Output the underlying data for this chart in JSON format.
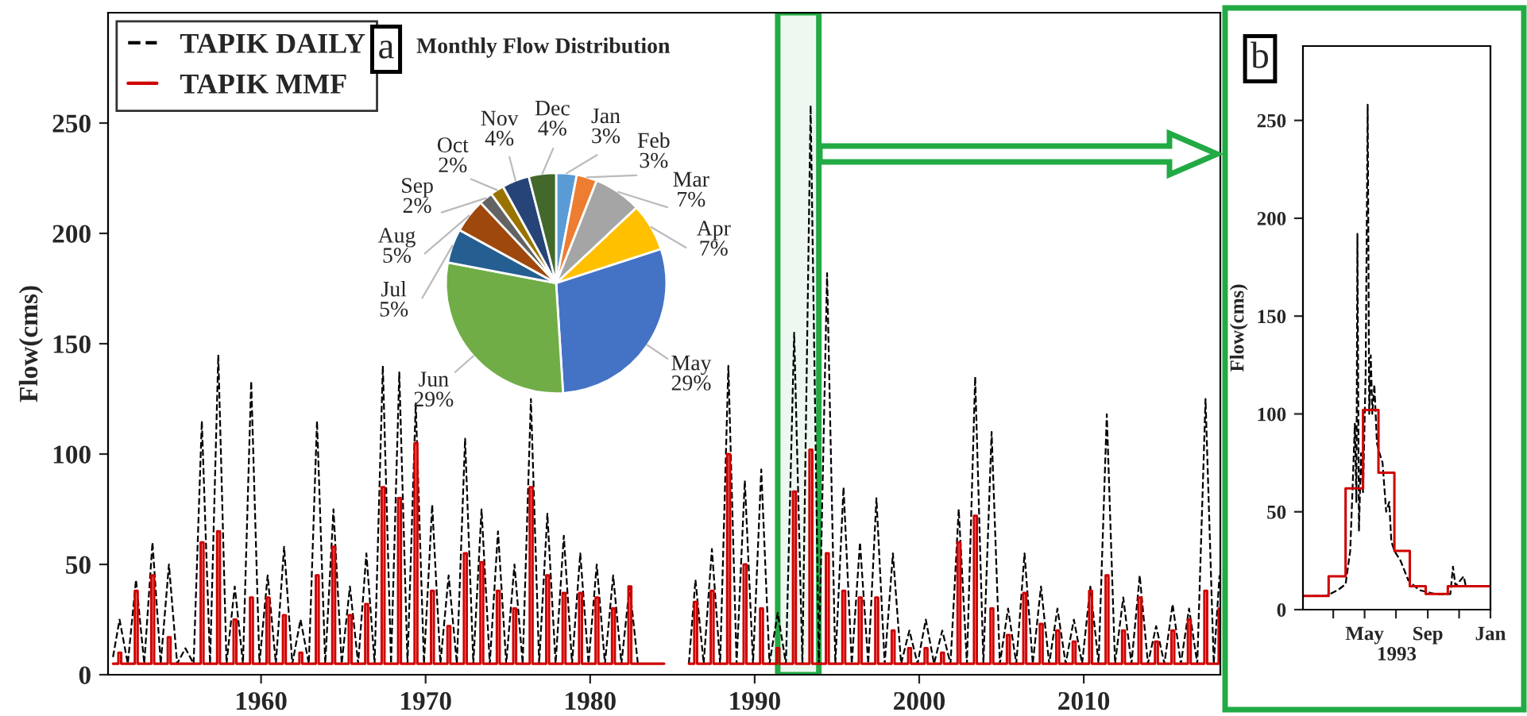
{
  "chart_data": [
    {
      "type": "line",
      "ylabel": "Flow(cms)",
      "xlim": [
        1950.7,
        2018.3
      ],
      "xticks": [
        1960,
        1970,
        1980,
        1990,
        2000,
        2010
      ],
      "ylim": [
        0,
        300
      ],
      "yticks": [
        0,
        50,
        100,
        150,
        200,
        250
      ],
      "grid": false,
      "legend": "top left",
      "bands": [
        {
          "axis": "x",
          "from": 1991.4,
          "to": 1993.9,
          "color": "#22aa44"
        }
      ],
      "series": [
        {
          "name": "TAPIK DAILY",
          "type": "line",
          "color": "#000000",
          "line_style": "dashed",
          "x": [
            1951.0,
            1951.4,
            1951.9,
            1952.4,
            1952.9,
            1953.4,
            1953.9,
            1954.4,
            1954.9,
            1955.4,
            1955.9,
            1956.4,
            1956.9,
            1957.4,
            1957.9,
            1958.4,
            1958.9,
            1959.4,
            1959.9,
            1960.4,
            1960.9,
            1961.4,
            1961.9,
            1962.4,
            1962.9,
            1963.4,
            1963.9,
            1964.4,
            1964.9,
            1965.4,
            1965.9,
            1966.4,
            1966.9,
            1967.4,
            1967.9,
            1968.4,
            1968.9,
            1969.4,
            1969.9,
            1970.4,
            1970.9,
            1971.4,
            1971.9,
            1972.4,
            1972.9,
            1973.4,
            1973.9,
            1974.4,
            1974.9,
            1975.4,
            1975.9,
            1976.4,
            1976.9,
            1977.4,
            1977.9,
            1978.4,
            1978.9,
            1979.4,
            1979.9,
            1980.4,
            1980.9,
            1981.4,
            1981.9,
            1982.4,
            1982.9,
            1984.5,
            1986.0,
            1986.4,
            1986.9,
            1987.4,
            1987.9,
            1988.4,
            1988.9,
            1989.4,
            1989.9,
            1990.4,
            1990.9,
            1991.4,
            1991.9,
            1992.4,
            1992.9,
            1993.4,
            1993.9,
            1994.4,
            1994.9,
            1995.4,
            1995.9,
            1996.4,
            1996.9,
            1997.4,
            1997.9,
            1998.4,
            1998.9,
            1999.4,
            1999.9,
            2000.4,
            2000.9,
            2001.4,
            2001.9,
            2002.4,
            2002.9,
            2003.4,
            2003.9,
            2004.4,
            2004.9,
            2005.4,
            2005.9,
            2006.4,
            2006.9,
            2007.4,
            2007.9,
            2008.4,
            2008.9,
            2009.4,
            2009.9,
            2010.4,
            2010.9,
            2011.4,
            2011.9,
            2012.4,
            2012.9,
            2013.4,
            2013.9,
            2014.4,
            2014.9,
            2015.4,
            2015.9,
            2016.4,
            2016.9,
            2017.4,
            2017.9,
            2018.25
          ],
          "values": [
            8,
            25,
            5,
            43,
            5,
            60,
            5,
            50,
            5,
            12,
            5,
            115,
            5,
            145,
            5,
            40,
            5,
            133,
            5,
            45,
            5,
            58,
            5,
            25,
            5,
            115,
            5,
            75,
            5,
            40,
            5,
            55,
            5,
            140,
            5,
            137,
            5,
            123,
            5,
            77,
            5,
            45,
            5,
            107,
            5,
            75,
            5,
            65,
            5,
            50,
            5,
            125,
            5,
            73,
            5,
            63,
            5,
            55,
            5,
            50,
            5,
            45,
            5,
            40,
            5,
            null,
            5,
            43,
            5,
            57,
            5,
            140,
            5,
            88,
            5,
            93,
            5,
            28,
            5,
            155,
            5,
            258,
            5,
            182,
            5,
            85,
            5,
            60,
            5,
            80,
            5,
            55,
            5,
            20,
            5,
            25,
            5,
            20,
            5,
            75,
            5,
            135,
            5,
            110,
            5,
            30,
            5,
            55,
            5,
            40,
            5,
            30,
            5,
            25,
            5,
            40,
            5,
            118,
            5,
            35,
            5,
            45,
            5,
            22,
            5,
            32,
            5,
            30,
            5,
            125,
            5,
            45
          ]
        },
        {
          "name": "TAPIK MMF",
          "type": "step",
          "color": "#d00000",
          "line_style": "solid",
          "x": [
            1951.0,
            1951.33,
            1951.5,
            1952.33,
            1952.5,
            1953.33,
            1953.5,
            1954.33,
            1954.5,
            1955.33,
            1955.5,
            1956.33,
            1956.5,
            1957.33,
            1957.5,
            1958.33,
            1958.5,
            1959.33,
            1959.5,
            1960.33,
            1960.5,
            1961.33,
            1961.5,
            1962.33,
            1962.5,
            1963.33,
            1963.5,
            1964.33,
            1964.5,
            1965.33,
            1965.5,
            1966.33,
            1966.5,
            1967.33,
            1967.5,
            1968.33,
            1968.5,
            1969.33,
            1969.5,
            1970.33,
            1970.5,
            1971.33,
            1971.5,
            1972.33,
            1972.5,
            1973.33,
            1973.5,
            1974.33,
            1974.5,
            1975.33,
            1975.5,
            1976.33,
            1976.5,
            1977.33,
            1977.5,
            1978.33,
            1978.5,
            1979.33,
            1979.5,
            1980.33,
            1980.5,
            1981.33,
            1981.5,
            1982.33,
            1982.5,
            1984.5,
            1986.0,
            1986.33,
            1986.5,
            1987.33,
            1987.5,
            1988.33,
            1988.5,
            1989.33,
            1989.5,
            1990.33,
            1990.5,
            1991.33,
            1991.5,
            1992.33,
            1992.5,
            1993.33,
            1993.5,
            1994.33,
            1994.5,
            1995.33,
            1995.5,
            1996.33,
            1996.5,
            1997.33,
            1997.5,
            1998.33,
            1998.5,
            1999.33,
            1999.5,
            2000.33,
            2000.5,
            2001.33,
            2001.5,
            2002.33,
            2002.5,
            2003.33,
            2003.5,
            2004.33,
            2004.5,
            2005.33,
            2005.5,
            2006.33,
            2006.5,
            2007.33,
            2007.5,
            2008.33,
            2008.5,
            2009.33,
            2009.5,
            2010.33,
            2010.5,
            2011.33,
            2011.5,
            2012.33,
            2012.5,
            2013.33,
            2013.5,
            2014.33,
            2014.5,
            2015.33,
            2015.5,
            2016.33,
            2016.5,
            2017.33,
            2017.5,
            2018.2
          ],
          "values": [
            5,
            10,
            5,
            38,
            5,
            45,
            5,
            17,
            5,
            5,
            5,
            60,
            5,
            65,
            5,
            25,
            5,
            35,
            5,
            35,
            5,
            27,
            5,
            10,
            5,
            45,
            5,
            58,
            5,
            27,
            5,
            32,
            5,
            85,
            5,
            80,
            5,
            105,
            5,
            38,
            5,
            22,
            5,
            55,
            5,
            51,
            5,
            38,
            5,
            30,
            5,
            85,
            5,
            45,
            5,
            37,
            5,
            37,
            5,
            35,
            5,
            30,
            5,
            40,
            5,
            null,
            5,
            33,
            5,
            38,
            5,
            100,
            5,
            50,
            5,
            30,
            5,
            12,
            5,
            83,
            5,
            102,
            5,
            55,
            5,
            38,
            5,
            35,
            5,
            35,
            5,
            20,
            5,
            12,
            5,
            12,
            5,
            10,
            5,
            60,
            5,
            72,
            5,
            30,
            5,
            18,
            5,
            37,
            5,
            23,
            5,
            20,
            5,
            15,
            5,
            38,
            5,
            45,
            5,
            20,
            5,
            35,
            5,
            15,
            5,
            20,
            5,
            25,
            5,
            38,
            5,
            30
          ]
        }
      ]
    },
    {
      "type": "pie",
      "title": "Monthly Flow Distribution",
      "annotations": [
        "a"
      ],
      "categories": [
        "Jan",
        "Feb",
        "Mar",
        "Apr",
        "May",
        "Jun",
        "Jul",
        "Aug",
        "Sep",
        "Oct",
        "Nov",
        "Dec"
      ],
      "values": [
        3,
        3,
        7,
        7,
        29,
        29,
        5,
        5,
        2,
        2,
        4,
        4
      ],
      "value_labels": [
        "3%",
        "3%",
        "7%",
        "7%",
        "29%",
        "29%",
        "5%",
        "5%",
        "2%",
        "2%",
        "4%",
        "4%"
      ],
      "colors": [
        "#5b9bd5",
        "#ed7d31",
        "#a5a5a5",
        "#ffc000",
        "#4472c4",
        "#70ad47",
        "#255e91",
        "#9e480e",
        "#636363",
        "#997300",
        "#264478",
        "#43682b"
      ]
    },
    {
      "type": "line",
      "ylabel": "Flow(cms)",
      "xlabel": "1993",
      "annotations": [
        "b"
      ],
      "xlim": [
        "1993-01-01",
        "1994-01-01"
      ],
      "xticks": [
        {
          "value": "1993-03-01",
          "label": null
        },
        {
          "value": "1993-05-01",
          "label": "May"
        },
        {
          "value": "1993-07-01",
          "label": null
        },
        {
          "value": "1993-09-01",
          "label": "Sep"
        },
        {
          "value": "1993-11-01",
          "label": null
        },
        {
          "value": "1994-01-01",
          "label": "Jan"
        }
      ],
      "ylim": [
        0,
        288
      ],
      "yticks": [
        0,
        50,
        100,
        150,
        200,
        250
      ],
      "grid": false,
      "series": [
        {
          "type": "line",
          "color": "#000000",
          "line_style": "dashed",
          "x": [
            "1993-01-01",
            "1993-02-15",
            "1993-03-10",
            "1993-03-25",
            "1993-04-03",
            "1993-04-08",
            "1993-04-12",
            "1993-04-15",
            "1993-04-17",
            "1993-04-20",
            "1993-04-24",
            "1993-04-28",
            "1993-05-03",
            "1993-05-07",
            "1993-05-10",
            "1993-05-13",
            "1993-05-16",
            "1993-05-20",
            "1993-05-25",
            "1993-05-30",
            "1993-06-05",
            "1993-06-12",
            "1993-06-18",
            "1993-06-22",
            "1993-06-28",
            "1993-07-10",
            "1993-07-25",
            "1993-08-15",
            "1993-09-15",
            "1993-10-15",
            "1993-10-20",
            "1993-10-25",
            "1993-11-10",
            "1993-11-14",
            "1993-12-31"
          ],
          "values": [
            7,
            7,
            10,
            13,
            30,
            65,
            95,
            55,
            192,
            40,
            80,
            60,
            120,
            258,
            100,
            130,
            100,
            115,
            85,
            80,
            75,
            50,
            55,
            35,
            30,
            25,
            15,
            10,
            8,
            8,
            22,
            12,
            17,
            12,
            12
          ]
        },
        {
          "type": "step",
          "color": "#d00000",
          "line_style": "solid",
          "x": [
            "1993-01-01",
            "1993-02-20",
            "1993-03-25",
            "1993-04-28",
            "1993-05-28",
            "1993-06-28",
            "1993-07-28",
            "1993-08-28",
            "1993-10-10",
            "1993-12-31"
          ],
          "values": [
            7,
            17,
            62,
            102,
            70,
            30,
            12,
            8,
            12,
            12
          ]
        }
      ]
    }
  ]
}
